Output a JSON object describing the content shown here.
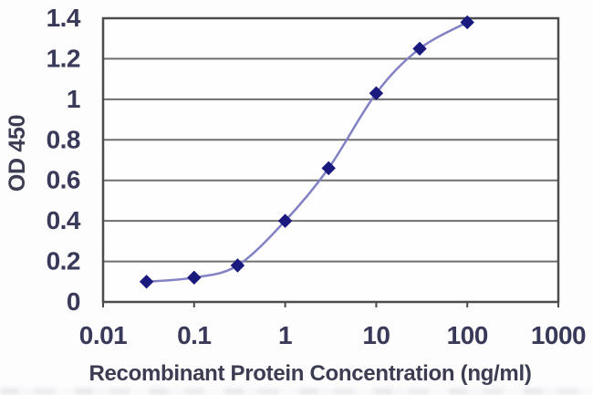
{
  "chart_data": {
    "type": "line",
    "title": "",
    "xlabel": "Recombinant Protein Concentration (ng/ml)",
    "ylabel": "OD 450",
    "x_scale": "log",
    "x": [
      0.03,
      0.1,
      0.3,
      1,
      3,
      10,
      30,
      100
    ],
    "series": [
      {
        "name": "OD 450",
        "values": [
          0.1,
          0.12,
          0.18,
          0.4,
          0.66,
          1.03,
          1.25,
          1.38
        ]
      }
    ],
    "xlim": [
      0.01,
      1000
    ],
    "ylim": [
      0,
      1.4
    ],
    "x_ticks": [
      0.01,
      0.1,
      1,
      10,
      100,
      1000
    ],
    "x_tick_labels": [
      "0.01",
      "0.1",
      "1",
      "10",
      "100",
      "1000"
    ],
    "y_ticks": [
      0,
      0.2,
      0.4,
      0.6,
      0.8,
      1,
      1.2,
      1.4
    ],
    "y_tick_labels": [
      "0",
      "0.2",
      "0.4",
      "0.6",
      "0.8",
      "1",
      "1.2",
      "1.4"
    ],
    "grid": "horizontal",
    "legend": "none",
    "marker_shape": "diamond",
    "colors": {
      "marker": "#19197e",
      "line": "#8181c4",
      "grid": "#6f6f6f",
      "border": "#4c4c4c",
      "tick": "#4a4a4a",
      "tick_label": "#39395a",
      "axis_title": "#3c3c52",
      "plot_bg": "#fefefe"
    }
  }
}
